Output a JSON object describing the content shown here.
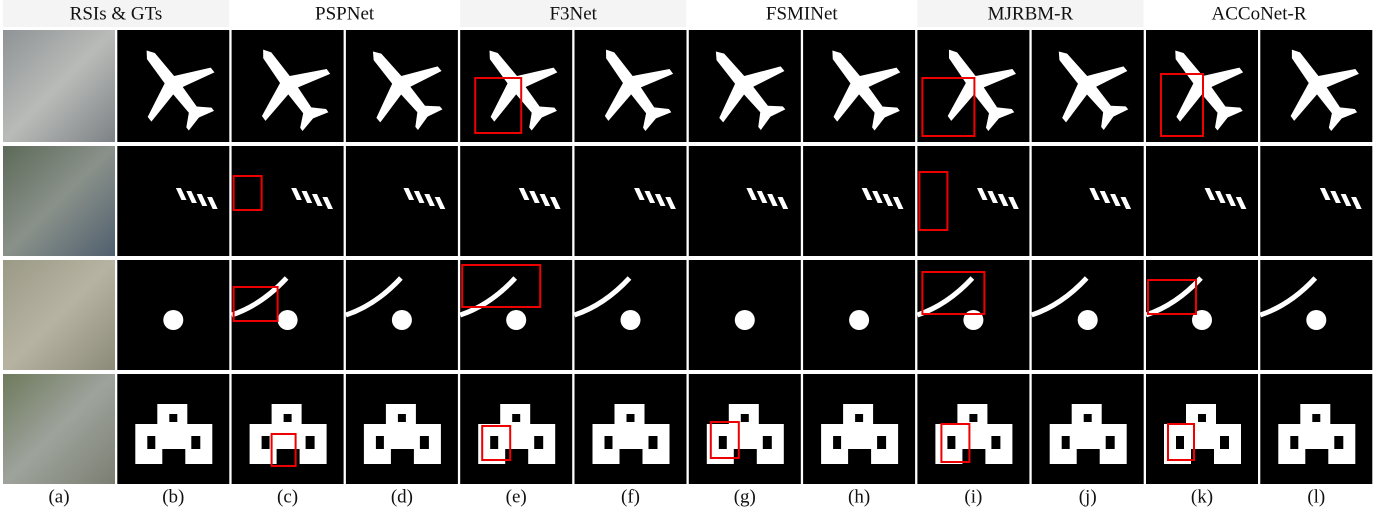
{
  "header": {
    "groups": [
      "RSIs & GTs",
      "PSPNet",
      "F3Net",
      "FSMINet",
      "MJRBM-R",
      "ACCoNet-R"
    ]
  },
  "column_labels": [
    "(a)",
    "(b)",
    "(c)",
    "(d)",
    "(e)",
    "(f)",
    "(g)",
    "(h)",
    "(i)",
    "(j)",
    "(k)",
    "(l)"
  ]
}
